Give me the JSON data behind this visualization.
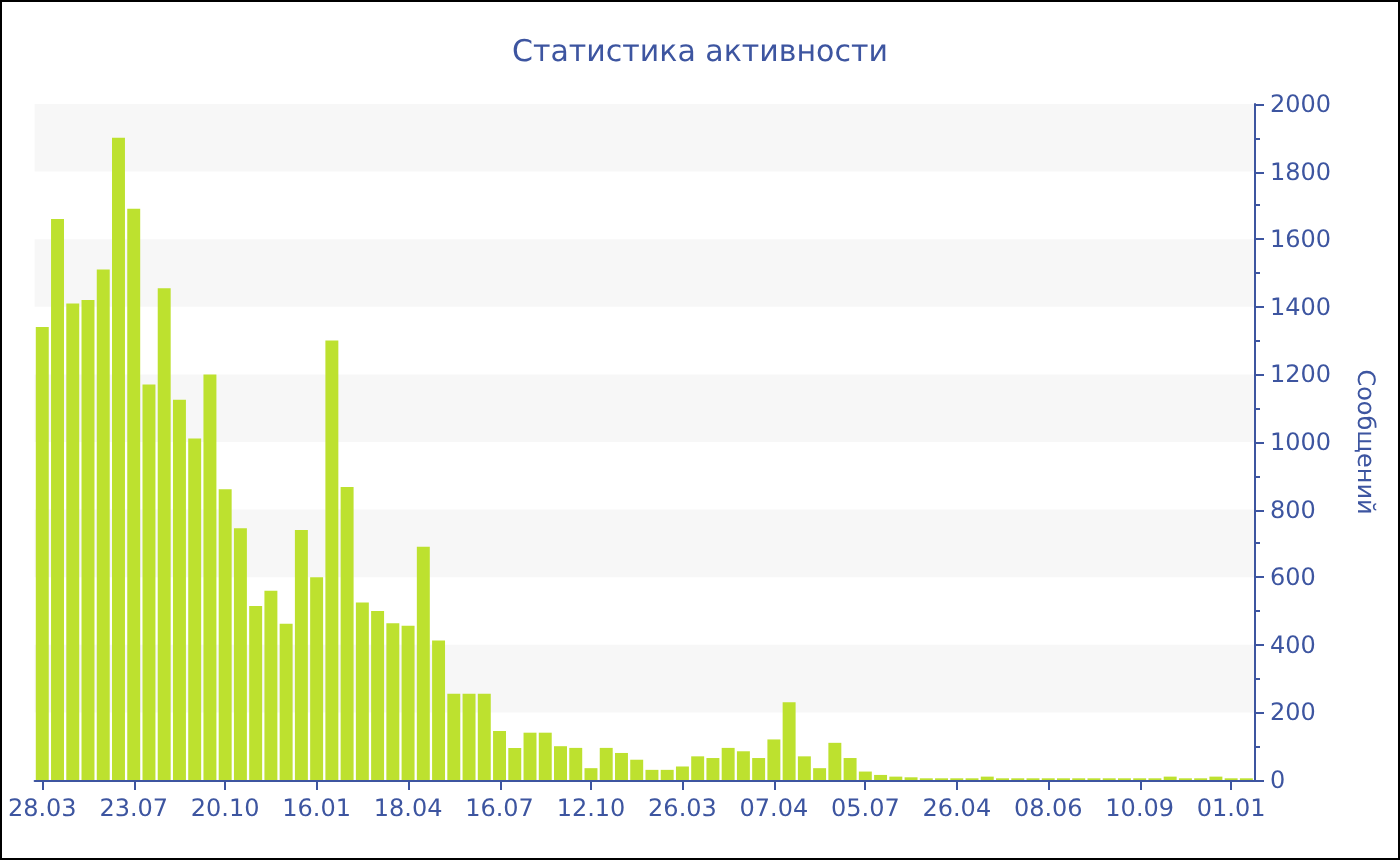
{
  "chart_data": {
    "type": "bar",
    "title": "Статистика активности",
    "ylabel": "Сообщений",
    "categories": [
      "28.03",
      null,
      null,
      null,
      null,
      null,
      "23.07",
      null,
      null,
      null,
      null,
      null,
      "20.10",
      null,
      null,
      null,
      null,
      null,
      "16.01",
      null,
      null,
      null,
      null,
      null,
      "18.04",
      null,
      null,
      null,
      null,
      null,
      "16.07",
      null,
      null,
      null,
      null,
      null,
      "12.10",
      null,
      null,
      null,
      null,
      null,
      "26.03",
      null,
      null,
      null,
      null,
      null,
      "07.04",
      null,
      null,
      null,
      null,
      null,
      "05.07",
      null,
      null,
      null,
      null,
      null,
      "26.04",
      null,
      null,
      null,
      null,
      null,
      "08.06",
      null,
      null,
      null,
      null,
      null,
      "10.09",
      null,
      null,
      null,
      null,
      null,
      "01.01",
      null
    ],
    "values": [
      1340,
      1660,
      1410,
      1420,
      1510,
      1900,
      1690,
      1170,
      1455,
      1125,
      1010,
      1200,
      860,
      745,
      515,
      560,
      462,
      740,
      600,
      1300,
      867,
      525,
      500,
      464,
      456,
      690,
      413,
      255,
      255,
      255,
      145,
      95,
      140,
      140,
      100,
      95,
      35,
      95,
      80,
      60,
      30,
      30,
      40,
      70,
      65,
      95,
      85,
      65,
      120,
      230,
      70,
      35,
      110,
      65,
      25,
      15,
      10,
      8,
      5,
      5,
      5,
      5,
      10,
      5,
      5,
      5,
      5,
      5,
      5,
      5,
      5,
      5,
      5,
      5,
      10,
      5,
      5,
      10,
      5,
      5
    ],
    "color": "#bde12f",
    "ylim": [
      0,
      2000
    ],
    "yticks": [
      0,
      200,
      400,
      600,
      800,
      1000,
      1200,
      1400,
      1600,
      1800,
      2000
    ],
    "bands": [
      {
        "axis": "y",
        "from": 200,
        "to": 400,
        "color": "#f7f7f7"
      },
      {
        "axis": "y",
        "from": 600,
        "to": 800,
        "color": "#f7f7f7"
      },
      {
        "axis": "y",
        "from": 1000,
        "to": 1200,
        "color": "#f7f7f7"
      },
      {
        "axis": "y",
        "from": 1400,
        "to": 1600,
        "color": "#f7f7f7"
      },
      {
        "axis": "y",
        "from": 1800,
        "to": 2000,
        "color": "#f7f7f7"
      }
    ]
  }
}
